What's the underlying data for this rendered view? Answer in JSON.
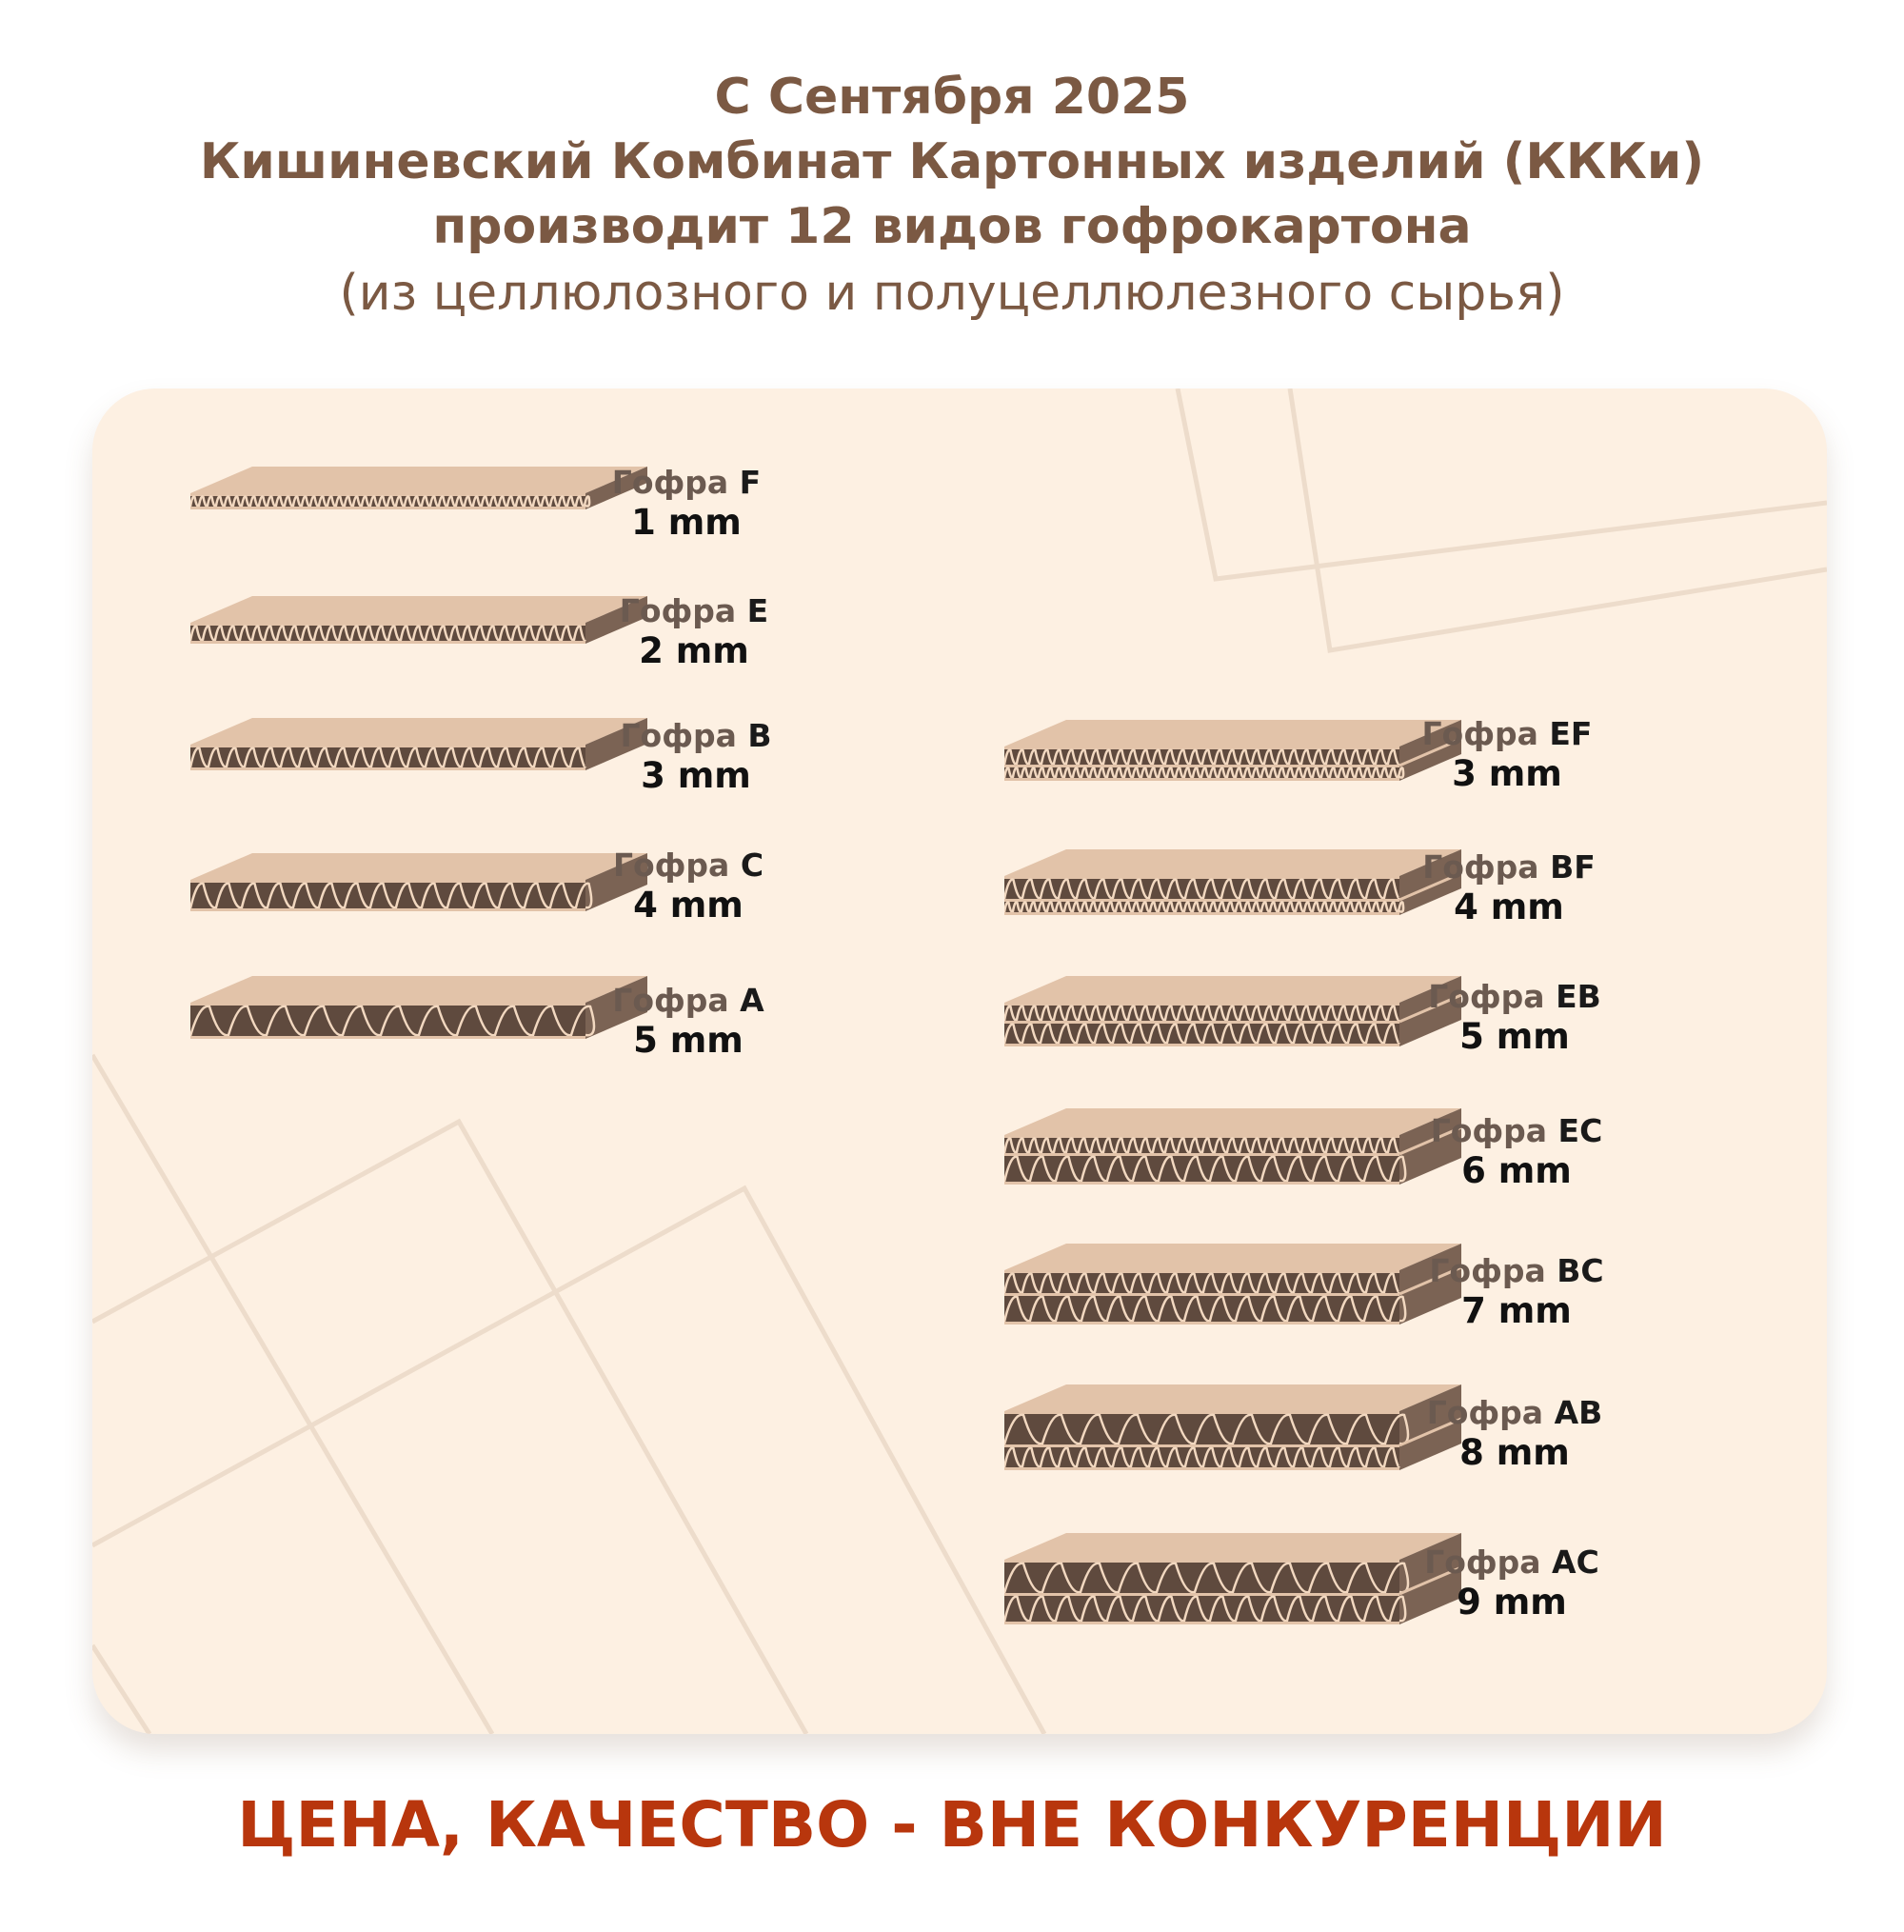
{
  "header": {
    "line1": "С Сентября 2025",
    "line2": "Кишиневский Комбинат Картонных изделий (КККи)",
    "line3": "производит 12 видов гофрокартона",
    "line4": "(из целлюлозного и полуцеллюлезного сырья)"
  },
  "boards": [
    {
      "prefix": "Гофра",
      "type": "F",
      "thickness": "1 mm"
    },
    {
      "prefix": "Гофра",
      "type": "E",
      "thickness": "2 mm"
    },
    {
      "prefix": "Гофра",
      "type": "B",
      "thickness": "3 mm"
    },
    {
      "prefix": "Гофра",
      "type": "C",
      "thickness": "4 mm"
    },
    {
      "prefix": "Гофра",
      "type": "A",
      "thickness": "5 mm"
    },
    {
      "prefix": "Гофра",
      "type": "EF",
      "thickness": "3 mm"
    },
    {
      "prefix": "Гофра",
      "type": "BF",
      "thickness": "4 mm"
    },
    {
      "prefix": "Гофра",
      "type": "EB",
      "thickness": "5 mm"
    },
    {
      "prefix": "Гофра",
      "type": "EC",
      "thickness": "6 mm"
    },
    {
      "prefix": "Гофра",
      "type": "BC",
      "thickness": "7 mm"
    },
    {
      "prefix": "Гофра",
      "type": "AB",
      "thickness": "8 mm"
    },
    {
      "prefix": "Гофра",
      "type": "AC",
      "thickness": "9 mm"
    }
  ],
  "footer": {
    "slogan": "ЦЕНА, КАЧЕСТВО - ВНЕ КОНКУРЕНЦИИ"
  },
  "colors": {
    "title": "#7b5943",
    "slogan": "#b8360d",
    "card": "#fdf0e2",
    "board_top": "#e2c3a9",
    "board_front": "#5f4a3e",
    "board_side": "#7b6354",
    "flute": "#f2d8c0"
  }
}
